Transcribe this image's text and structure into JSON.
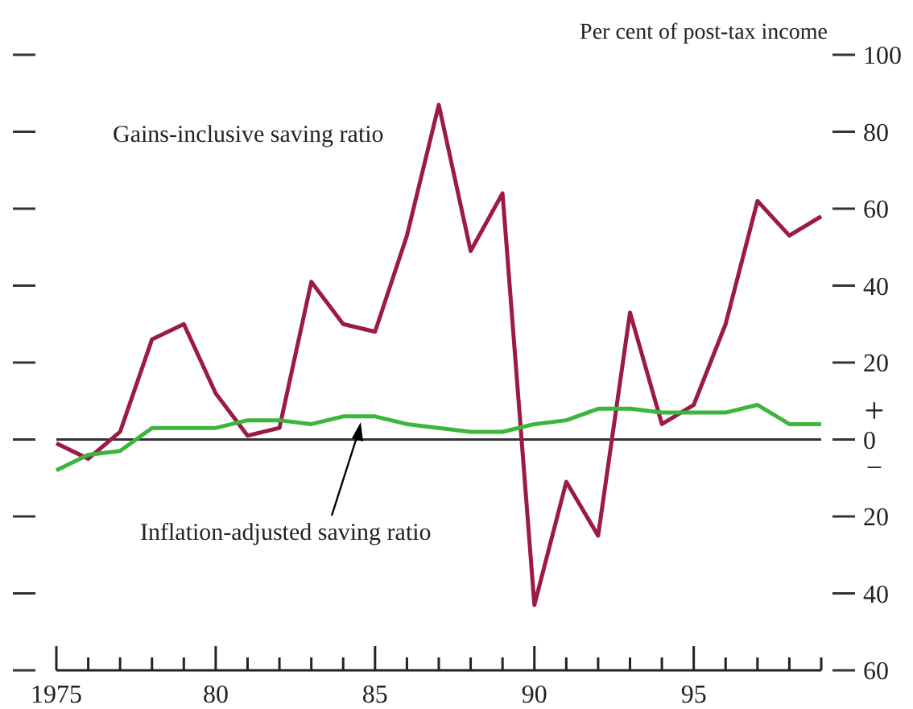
{
  "chart_data": {
    "type": "line",
    "ylabel": "Per cent of post-tax income",
    "x": [
      1975,
      1976,
      1977,
      1978,
      1979,
      1980,
      1981,
      1982,
      1983,
      1984,
      1985,
      1986,
      1987,
      1988,
      1989,
      1990,
      1991,
      1992,
      1993,
      1994,
      1995,
      1996,
      1997,
      1998,
      1999
    ],
    "series": [
      {
        "name": "Gains-inclusive saving ratio",
        "color": "#9b1b45",
        "values": [
          -1,
          -5,
          2,
          26,
          30,
          12,
          1,
          3,
          41,
          30,
          28,
          53,
          87,
          49,
          64,
          -43,
          -11,
          -25,
          33,
          4,
          9,
          30,
          62,
          53,
          58
        ]
      },
      {
        "name": "Inflation-adjusted saving ratio",
        "color": "#3cb53c",
        "values": [
          -8,
          -4,
          -3,
          3,
          3,
          3,
          5,
          5,
          4,
          6,
          6,
          4,
          3,
          2,
          2,
          4,
          5,
          8,
          8,
          7,
          7,
          7,
          9,
          4,
          4
        ]
      }
    ],
    "xlim": [
      1975,
      1999
    ],
    "xticks": [
      {
        "value": 1975,
        "label": "1975"
      },
      {
        "value": 1976,
        "label": null
      },
      {
        "value": 1977,
        "label": null
      },
      {
        "value": 1978,
        "label": null
      },
      {
        "value": 1979,
        "label": null
      },
      {
        "value": 1980,
        "label": "80"
      },
      {
        "value": 1981,
        "label": null
      },
      {
        "value": 1982,
        "label": null
      },
      {
        "value": 1983,
        "label": null
      },
      {
        "value": 1984,
        "label": null
      },
      {
        "value": 1985,
        "label": "85"
      },
      {
        "value": 1986,
        "label": null
      },
      {
        "value": 1987,
        "label": null
      },
      {
        "value": 1988,
        "label": null
      },
      {
        "value": 1989,
        "label": null
      },
      {
        "value": 1990,
        "label": "90"
      },
      {
        "value": 1991,
        "label": null
      },
      {
        "value": 1992,
        "label": null
      },
      {
        "value": 1993,
        "label": null
      },
      {
        "value": 1994,
        "label": null
      },
      {
        "value": 1995,
        "label": "95"
      },
      {
        "value": 1996,
        "label": null
      },
      {
        "value": 1997,
        "label": null
      },
      {
        "value": 1998,
        "label": null
      },
      {
        "value": 1999,
        "label": null
      }
    ],
    "ylim": [
      -60,
      100
    ],
    "yticks": [
      {
        "value": -60,
        "label": "60"
      },
      {
        "value": -40,
        "label": "40"
      },
      {
        "value": -20,
        "label": "20"
      },
      0,
      20,
      40,
      60,
      80,
      100
    ],
    "ref_lines": [
      {
        "axis": "y",
        "value": 0,
        "color": "#333333"
      }
    ],
    "annotations": [
      "+",
      "−"
    ],
    "legend": false,
    "grid": false,
    "marker": "none",
    "line_style": "solid"
  }
}
